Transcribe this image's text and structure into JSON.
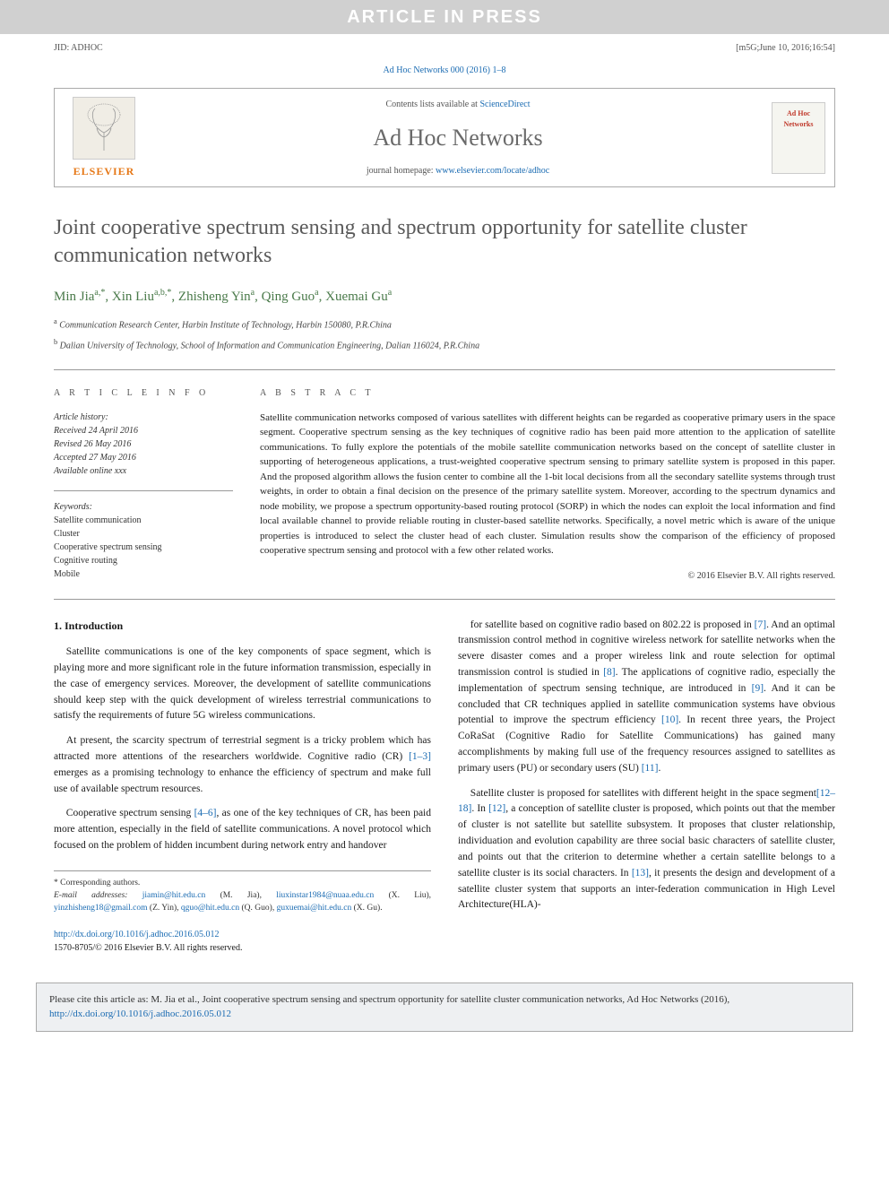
{
  "watermark": "ARTICLE IN PRESS",
  "top_meta": {
    "left": "JID: ADHOC",
    "right": "[m5G;June 10, 2016;16:54]"
  },
  "journal_ref": "Ad Hoc Networks 000 (2016) 1–8",
  "header": {
    "contents_prefix": "Contents lists available at ",
    "contents_link": "ScienceDirect",
    "journal_name": "Ad Hoc Networks",
    "homepage_prefix": "journal homepage: ",
    "homepage_link": "www.elsevier.com/locate/adhoc",
    "elsevier_label": "ELSEVIER",
    "cover_label": "Ad Hoc Networks"
  },
  "title": "Joint cooperative spectrum sensing and spectrum opportunity for satellite cluster communication networks",
  "authors_html": "Min Jia<sup>a,*</sup>, Xin Liu<sup>a,b,*</sup>, Zhisheng Yin<sup>a</sup>, Qing Guo<sup>a</sup>, Xuemai Gu<sup>a</sup>",
  "affiliations": [
    {
      "sup": "a",
      "text": "Communication Research Center, Harbin Institute of Technology, Harbin 150080, P.R.China"
    },
    {
      "sup": "b",
      "text": "Dalian University of Technology, School of Information and Communication Engineering, Dalian 116024, P.R.China"
    }
  ],
  "article_info_label": "A R T I C L E   I N F O",
  "abstract_label": "A B S T R A C T",
  "history": {
    "label": "Article history:",
    "received": "Received 24 April 2016",
    "revised": "Revised 26 May 2016",
    "accepted": "Accepted 27 May 2016",
    "online": "Available online xxx"
  },
  "keywords": {
    "label": "Keywords:",
    "items": [
      "Satellite communication",
      "Cluster",
      "Cooperative spectrum sensing",
      "Cognitive routing",
      "Mobile"
    ]
  },
  "abstract": "Satellite communication networks composed of various satellites with different heights can be regarded as cooperative primary users in the space segment. Cooperative spectrum sensing as the key techniques of cognitive radio has been paid more attention to the application of satellite communications. To fully explore the potentials of the mobile satellite communication networks based on the concept of satellite cluster in supporting of heterogeneous applications, a trust-weighted cooperative spectrum sensing to primary satellite system is proposed in this paper. And the proposed algorithm allows the fusion center to combine all the 1-bit local decisions from all the secondary satellite systems through trust weights, in order to obtain a final decision on the presence of the primary satellite system. Moreover, according to the spectrum dynamics and node mobility, we propose a spectrum opportunity-based routing protocol (SORP) in which the nodes can exploit the local information and find local available channel to provide reliable routing in cluster-based satellite networks. Specifically, a novel metric which is aware of the unique properties is introduced to select the cluster head of each cluster. Simulation results show the comparison of the efficiency of proposed cooperative spectrum sensing and protocol with a few other related works.",
  "copyright": "© 2016 Elsevier B.V. All rights reserved.",
  "intro_heading": "1. Introduction",
  "body_left": [
    "Satellite communications is one of the key components of space segment, which is playing more and more significant role in the future information transmission, especially in the case of emergency services. Moreover, the development of satellite communications should keep step with the quick development of wireless terrestrial communications to satisfy the requirements of future 5G wireless communications.",
    "At present, the scarcity spectrum of terrestrial segment is a tricky problem which has attracted more attentions of the researchers worldwide. Cognitive radio (CR) [1–3] emerges as a promising technology to enhance the efficiency of spectrum and make full use of available spectrum resources.",
    "Cooperative spectrum sensing [4–6], as one of the key techniques of CR, has been paid more attention, especially in the field of satellite communications. A novel protocol which focused on the problem of hidden incumbent during network entry and handover"
  ],
  "body_right": [
    "for satellite based on cognitive radio based on 802.22 is proposed in [7]. And an optimal transmission control method in cognitive wireless network for satellite networks when the severe disaster comes and a proper wireless link and route selection for optimal transmission control is studied in [8]. The applications of cognitive radio, especially the implementation of spectrum sensing technique, are introduced in [9]. And it can be concluded that CR techniques applied in satellite communication systems have obvious potential to improve the spectrum efficiency [10]. In recent three years, the Project CoRaSat (Cognitive Radio for Satellite Communications) has gained many accomplishments by making full use of the frequency resources assigned to satellites as primary users (PU) or secondary users (SU) [11].",
    "Satellite cluster is proposed for satellites with different height in the space segment[12–18]. In [12], a conception of satellite cluster is proposed, which points out that the member of cluster is not satellite but satellite subsystem. It proposes that cluster relationship, individuation and evolution capability are three social basic characters of satellite cluster, and points out that the criterion to determine whether a certain satellite belongs to a satellite cluster is its social characters. In [13], it presents the design and development of a satellite cluster system that supports an inter-federation communication in High Level Architecture(HLA)-"
  ],
  "refs_in_text": {
    "r1_3": "[1–3]",
    "r4_6": "[4–6]",
    "r7": "[7]",
    "r8": "[8]",
    "r9": "[9]",
    "r10": "[10]",
    "r11": "[11]",
    "r12": "[12]",
    "r13": "[13]"
  },
  "footnotes": {
    "corr": "* Corresponding authors.",
    "email_label": "E-mail addresses:",
    "emails": [
      {
        "addr": "jiamin@hit.edu.cn",
        "who": "(M. Jia)"
      },
      {
        "addr": "liuxinstar1984@nuaa.edu.cn",
        "who": "(X. Liu)"
      },
      {
        "addr": "yinzhisheng18@gmail.com",
        "who": "(Z. Yin)"
      },
      {
        "addr": "qguo@hit.edu.cn",
        "who": "(Q. Guo)"
      },
      {
        "addr": "guxuemai@hit.edu.cn",
        "who": "(X. Gu)"
      }
    ]
  },
  "doi": {
    "url": "http://dx.doi.org/10.1016/j.adhoc.2016.05.012",
    "issn": "1570-8705/© 2016 Elsevier B.V. All rights reserved."
  },
  "cite_box": {
    "prefix": "Please cite this article as: M. Jia et al., Joint cooperative spectrum sensing and spectrum opportunity for satellite cluster communication networks, Ad Hoc Networks (2016), ",
    "link": "http://dx.doi.org/10.1016/j.adhoc.2016.05.012"
  },
  "colors": {
    "link": "#1a6bb2",
    "author": "#4a7a4a",
    "title": "#5a5a5a",
    "elsevier": "#e67817"
  }
}
